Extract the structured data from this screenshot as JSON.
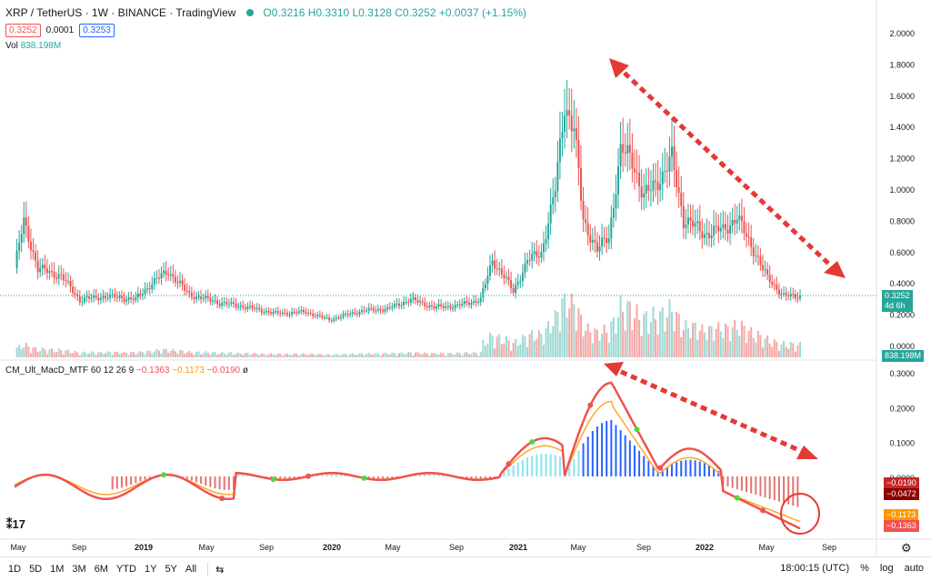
{
  "header": {
    "symbol": "XRP / TetherUS · 1W · BINANCE · TradingView",
    "ohlc": "O0.3216 H0.3310 L0.3128 C0.3252 +0.0037 (+1.15%)",
    "sell": "0.3252",
    "spread": "0.0001",
    "buy": "0.3253",
    "vol_label": "Vol",
    "vol_value": "838.198M"
  },
  "price_axis": [
    "2.0000",
    "1.8000",
    "1.6000",
    "1.4000",
    "1.2000",
    "1.0000",
    "0.8000",
    "0.6000",
    "0.4000",
    "0.2000",
    "0.0000"
  ],
  "price_tag": {
    "value": "0.3252",
    "countdown": "4d 6h"
  },
  "vol_tag": "838.198M",
  "macd": {
    "label": "CM_Ult_MacD_MTF 60 12 26 9",
    "v1": "−0.1363",
    "v2": "−0.1173",
    "v3": "−0.0190",
    "axis": [
      "0.3000",
      "0.2000",
      "0.1000",
      "0.0000"
    ],
    "tags": [
      "−0.0190",
      "−0.0472",
      "−0.1173",
      "−0.1363"
    ]
  },
  "time_axis": [
    "May",
    "Sep",
    "2019",
    "May",
    "Sep",
    "2020",
    "May",
    "Sep",
    "2021",
    "May",
    "Sep",
    "2022",
    "May",
    "Sep"
  ],
  "bottom": {
    "timeframes": [
      "1D",
      "5D",
      "1M",
      "3M",
      "6M",
      "YTD",
      "1Y",
      "5Y",
      "All"
    ],
    "time": "18:00:15 (UTC)",
    "pct": "%",
    "log": "log",
    "auto": "auto"
  },
  "colors": {
    "up": "#26a69a",
    "down": "#ef5350",
    "arrow": "#e53935",
    "macd_fast": "#ef5350",
    "macd_green": "#4cdc3a",
    "macd_signal": "#ffa726"
  }
}
